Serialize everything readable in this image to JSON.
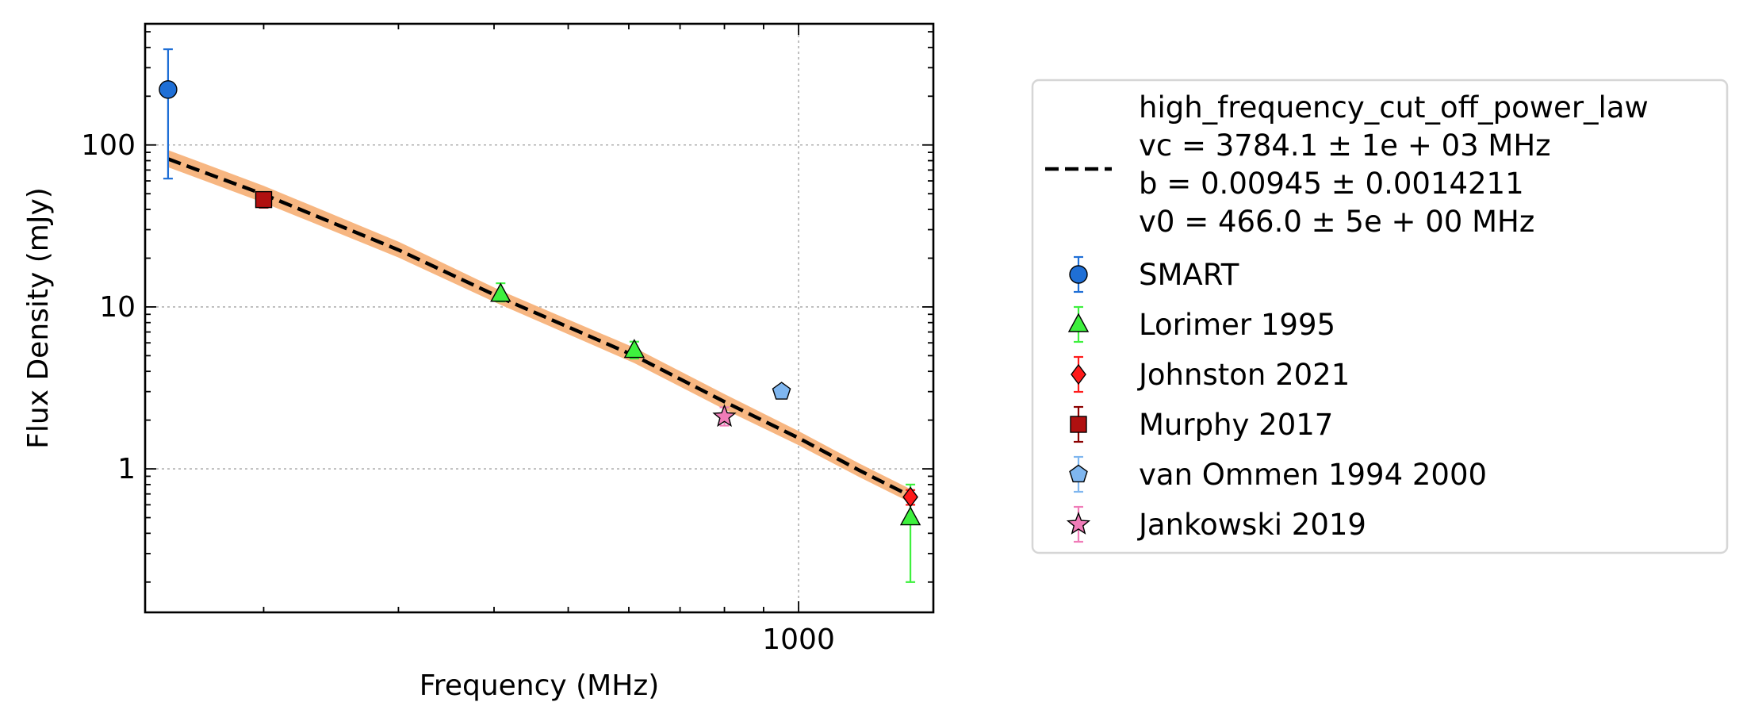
{
  "chart_data": {
    "type": "scatter",
    "xlabel": "Frequency (MHz)",
    "ylabel": "Flux Density (mJy)",
    "xscale": "log",
    "yscale": "log",
    "xlim": [
      140,
      1500
    ],
    "ylim": [
      0.13,
      560
    ],
    "x_ticks": [
      {
        "value": 1000,
        "label": "1000"
      }
    ],
    "y_ticks": [
      {
        "value": 1,
        "label": "1"
      },
      {
        "value": 10,
        "label": "10"
      },
      {
        "value": 100,
        "label": "100"
      }
    ],
    "grid": true,
    "legend_placement": "outside-right",
    "model": {
      "name_lines": [
        "high_frequency_cut_off_power_law",
        "vc = 3784.1 ± 1e + 03 MHz",
        "b = 0.00945 ± 0.0014211",
        "v0 = 466.0 ± 5e + 00 MHz"
      ],
      "line_color": "#000000",
      "band_color": "#f7b27a",
      "x": [
        150,
        200,
        300,
        408,
        610,
        800,
        1000,
        1200,
        1400
      ],
      "y": [
        82,
        49.5,
        22.5,
        11.4,
        5.0,
        2.6,
        1.55,
        0.98,
        0.68
      ],
      "band_lower": [
        73,
        44,
        20.2,
        10.3,
        4.5,
        2.33,
        1.4,
        0.89,
        0.62
      ],
      "band_upper": [
        93,
        56,
        25.3,
        12.6,
        5.6,
        2.9,
        1.71,
        1.08,
        0.75
      ]
    },
    "series": [
      {
        "name": "SMART",
        "marker": "circle",
        "color": "#1f6fd6",
        "err_color": "#1f6fd6",
        "points": [
          {
            "x": 150,
            "y": 220,
            "ylo": 62,
            "yhi": 390
          }
        ]
      },
      {
        "name": "Lorimer 1995",
        "marker": "triangle",
        "color": "#3ef03e",
        "err_color": "#3ef03e",
        "points": [
          {
            "x": 408,
            "y": 12,
            "ylo": 10.8,
            "yhi": 14
          },
          {
            "x": 610,
            "y": 5.4,
            "ylo": 4.8,
            "yhi": 6.1
          },
          {
            "x": 1400,
            "y": 0.5,
            "ylo": 0.2,
            "yhi": 0.8
          }
        ]
      },
      {
        "name": "Johnston 2021",
        "marker": "diamond",
        "color": "#ff1a1a",
        "err_color": "#ff1a1a",
        "points": [
          {
            "x": 1400,
            "y": 0.67,
            "ylo": 0.6,
            "yhi": 0.74
          }
        ]
      },
      {
        "name": "Murphy 2017",
        "marker": "square",
        "color": "#b01010",
        "err_color": "#8b0000",
        "points": [
          {
            "x": 200,
            "y": 46,
            "ylo": 41,
            "yhi": 51
          }
        ]
      },
      {
        "name": "van Ommen 1994 2000",
        "marker": "pentagon",
        "color": "#7fb6ef",
        "err_color": "#7fb6ef",
        "points": [
          {
            "x": 950,
            "y": 3.0
          }
        ]
      },
      {
        "name": "Jankowski 2019",
        "marker": "star",
        "color": "#f07cb8",
        "err_color": "#f07cb8",
        "points": [
          {
            "x": 800,
            "y": 2.1,
            "ylo": 1.85,
            "yhi": 2.4
          }
        ]
      }
    ]
  }
}
